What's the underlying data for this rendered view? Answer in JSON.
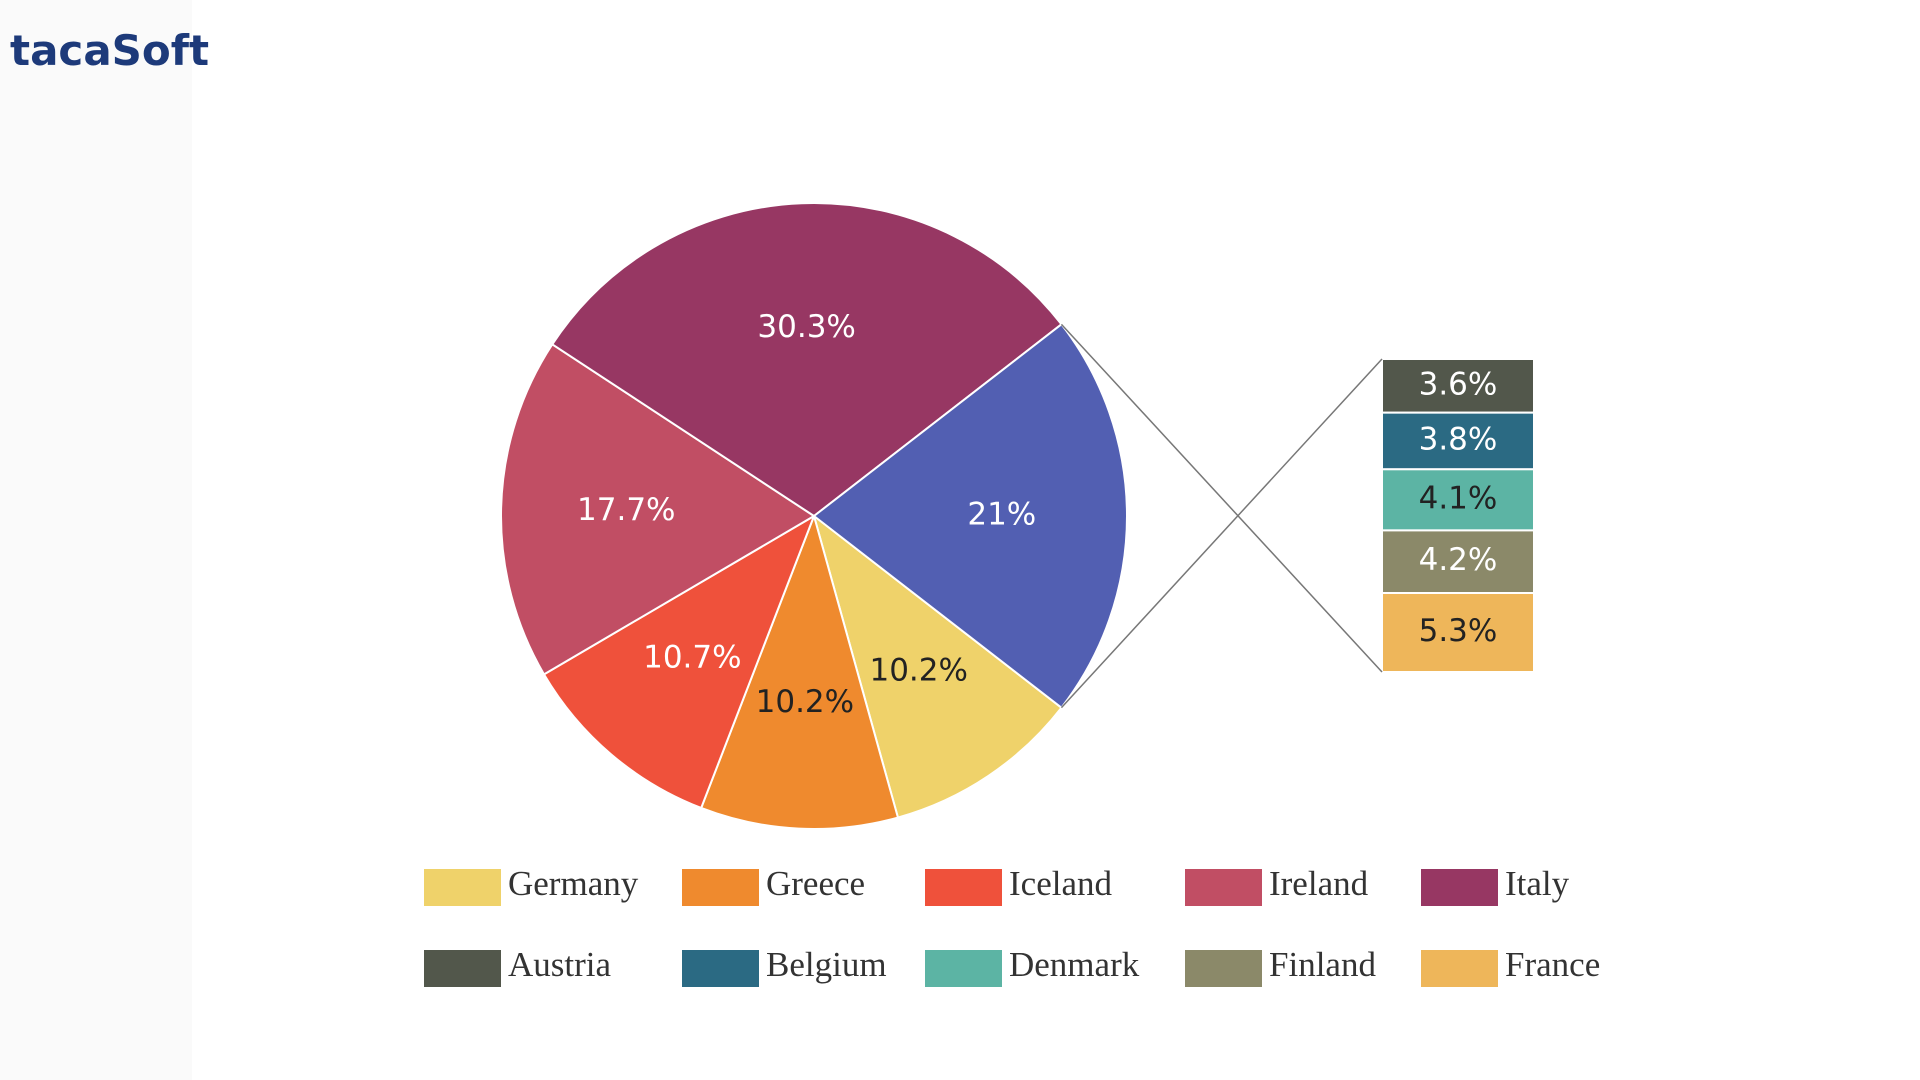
{
  "logo": "tacaSoft",
  "chart_data": {
    "type": "bar_of_pie",
    "categories": [
      "Germany",
      "Greece",
      "Iceland",
      "Ireland",
      "Italy",
      null
    ],
    "values": [
      10.2,
      10.2,
      10.7,
      17.7,
      30.3,
      21
    ],
    "value_labels": [
      "10.2%",
      "10.2%",
      "10.7%",
      "17.7%",
      "30.3%",
      "21%"
    ],
    "colors": [
      "#efd26a",
      "#ef8a2e",
      "#ef513b",
      "#c14e64",
      "#973763",
      "#525fb2"
    ],
    "split": {
      "categories": [
        "Austria",
        "Belgium",
        "Denmark",
        "Finland",
        "France"
      ],
      "values": [
        3.6,
        3.8,
        4.1,
        4.2,
        5.3
      ],
      "value_labels": [
        "3.6%",
        "3.8%",
        "4.1%",
        "4.2%",
        "5.3%"
      ],
      "colors": [
        "#52574b",
        "#2b6a83",
        "#5cb4a4",
        "#8b8969",
        "#eeb65a"
      ]
    }
  }
}
